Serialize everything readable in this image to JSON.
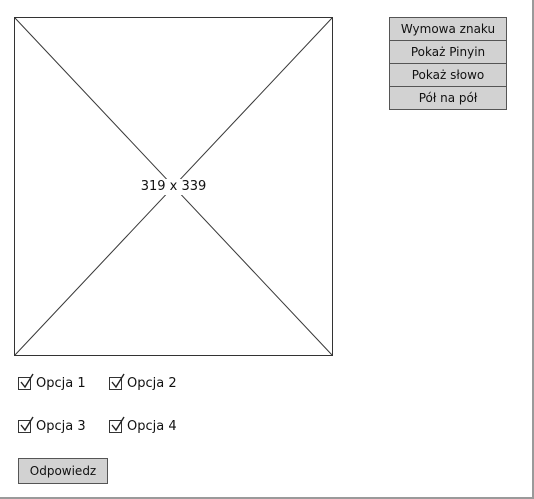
{
  "image_placeholder": {
    "label": "319 x 339"
  },
  "buttons": [
    {
      "label": "Wymowa znaku"
    },
    {
      "label": "Pokaż Pinyin"
    },
    {
      "label": "Pokaż słowo"
    },
    {
      "label": "Pół na pół"
    }
  ],
  "options": [
    {
      "label": "Opcja 1",
      "checked": true
    },
    {
      "label": "Opcja 2",
      "checked": true
    },
    {
      "label": "Opcja 3",
      "checked": true
    },
    {
      "label": "Opcja 4",
      "checked": true
    }
  ],
  "answer_button": {
    "label": "Odpowiedz"
  },
  "icons": {
    "checkbox": "checkmark-icon"
  }
}
